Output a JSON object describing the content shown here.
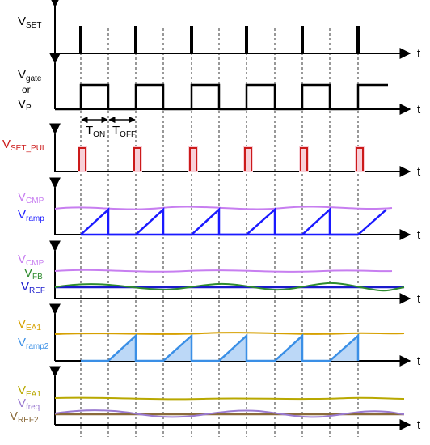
{
  "colors": {
    "black": "#000000",
    "red": "#cc1a1a",
    "violet": "#c77ef0",
    "blue": "#1a1aff",
    "green": "#2e8b2e",
    "navy": "#1a1acc",
    "gold": "#d6a000",
    "lightblue": "#3a8fe6",
    "olive": "#b8a800",
    "purple": "#9a7ad0",
    "brown": "#8a6a3a"
  },
  "axis_label": "t",
  "panels": {
    "vset": {
      "main": "V",
      "sub": "SET"
    },
    "vgate": {
      "line1_main": "V",
      "line1_sub": "gate",
      "line2": "or",
      "line3_main": "V",
      "line3_sub": "P"
    },
    "vsetpul": {
      "main": "V",
      "sub": "SET_PUL"
    },
    "p4": {
      "l1_main": "V",
      "l1_sub": "CMP",
      "l2_main": "V",
      "l2_sub": "ramp"
    },
    "p5": {
      "l1_main": "V",
      "l1_sub": "CMP",
      "l2_main": "V",
      "l2_sub": "FB",
      "l3_main": "V",
      "l3_sub": "REF"
    },
    "p6": {
      "l1_main": "V",
      "l1_sub": "EA1",
      "l2_main": "V",
      "l2_sub": "ramp2"
    },
    "p7": {
      "l1_main": "V",
      "l1_sub": "EA1",
      "l2_main": "V",
      "l2_sub": "freq",
      "l3_main": "V",
      "l3_sub": "REF2"
    }
  },
  "timing": {
    "ton_main": "T",
    "ton_sub": "ON",
    "toff_main": "T",
    "toff_sub": "OFF"
  }
}
